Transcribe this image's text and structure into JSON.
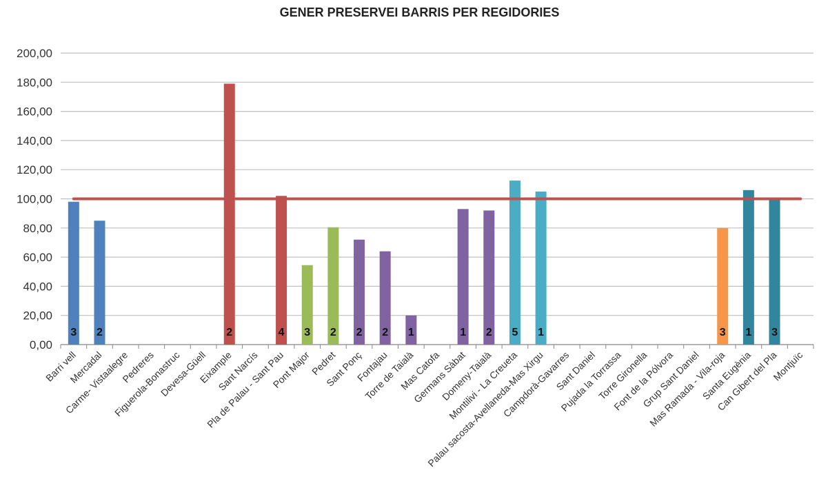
{
  "chart_data": {
    "type": "bar",
    "title": "GENER PRESERVEI BARRIS PER REGIDORIES",
    "xlabel": "",
    "ylabel": "",
    "ylim": [
      0,
      200
    ],
    "yticks": [
      "0,00",
      "20,00",
      "40,00",
      "60,00",
      "80,00",
      "100,00",
      "120,00",
      "140,00",
      "160,00",
      "180,00",
      "200,00"
    ],
    "grid": true,
    "legend": "none",
    "reference_line": {
      "value": 100,
      "color": "#C0504D"
    },
    "categories": [
      "Barri vell",
      "Mercadal",
      "Carme- Vistaalegre",
      "Pedreres",
      "Figuerola-Bonastruc",
      "Devesa-Güell",
      "Eixample",
      "Sant Narcís",
      "Pla de Palau - Sant Pau",
      "Pont Major",
      "Pedret",
      "Sant Ponç",
      "Fontajau",
      "Torre de Taialà",
      "Mas Catofa",
      "Germans Sàbat",
      "Domeny-Taialà",
      "Montilivi - La Creueta",
      "Palau sacosta-Avellaneda-Mas Xirgu",
      "Campdorà-Gavarres",
      "Sant Daniel",
      "Pujada la Torrassa",
      "Torre Gironella",
      "Font de la Pólvora",
      "Grup Sant Daniel",
      "Mas Ramada - Vila-roja",
      "Santa Eugènia",
      "Can Gibert del Pla",
      "Montjuïc"
    ],
    "values": [
      98,
      85,
      0,
      0,
      0,
      0,
      179,
      0,
      102,
      54.5,
      80.5,
      72,
      64,
      20,
      0,
      93,
      92,
      112.5,
      105,
      0,
      0,
      0,
      0,
      0,
      0,
      80,
      106,
      100,
      0
    ],
    "labels": [
      "3",
      "2",
      "",
      "",
      "",
      "",
      "2",
      "",
      "4",
      "3",
      "2",
      "2",
      "2",
      "1",
      "",
      "1",
      "2",
      "5",
      "1",
      "",
      "",
      "",
      "",
      "",
      "",
      "3",
      "1",
      "3",
      ""
    ],
    "colors": [
      "#4F81BD",
      "#4F81BD",
      "#4F81BD",
      "#4F81BD",
      "#4F81BD",
      "#4F81BD",
      "#C0504D",
      "#C0504D",
      "#C0504D",
      "#9BBB59",
      "#9BBB59",
      "#8064A2",
      "#8064A2",
      "#8064A2",
      "#8064A2",
      "#8064A2",
      "#8064A2",
      "#4BACC6",
      "#4BACC6",
      "#4BACC6",
      "#4BACC6",
      "#4BACC6",
      "#4BACC6",
      "#4BACC6",
      "#4BACC6",
      "#F79646",
      "#31859C",
      "#31859C",
      "#31859C"
    ]
  }
}
